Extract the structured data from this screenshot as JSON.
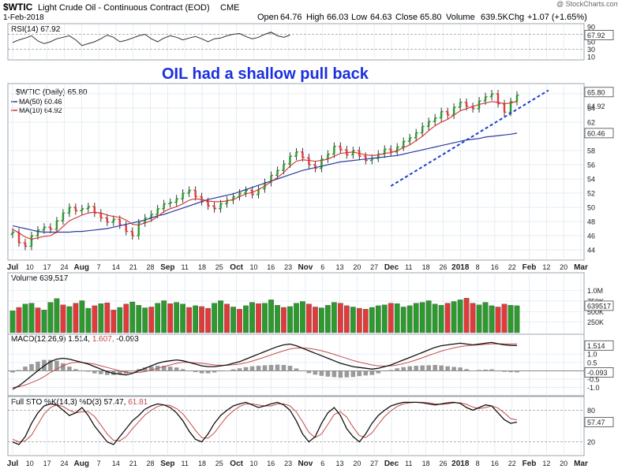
{
  "header": {
    "symbol": "$WTIC",
    "name": "Light Crude Oil - Continuous Contract (EOD)",
    "exchange": "CME",
    "date": "1-Feb-2018",
    "watermark": "@ StockCharts.com",
    "quote": {
      "open": "64.76",
      "high": "66.03",
      "low": "64.63",
      "close": "65.80",
      "volume": "639.5K",
      "chg": "+1.07 (+1.65%)",
      "open_label": "Open",
      "high_label": "High",
      "low_label": "Low",
      "close_label": "Close",
      "volume_label": "Volume",
      "chg_label": "Chg"
    }
  },
  "annotation": "OIL had a shallow pull back",
  "colors": {
    "up": "#2c9a2c",
    "down": "#e03b3b",
    "ma50": "#2a3aa0",
    "ma10": "#d13030",
    "rsi": "#333333",
    "trend": "#1c3ccf",
    "panel_bg": "#ffffff",
    "grid": "#dbe6ef",
    "macd": "#111111",
    "signal": "#c84a4a",
    "stok": "#111111",
    "stod": "#c84a4a",
    "hist": "#9a9a9a"
  },
  "chart_data": [
    {
      "type": "line",
      "title": "RSI(14) 67.92",
      "ylim": [
        10,
        90
      ],
      "yticks": [
        "90",
        "70",
        "50",
        "30",
        "10"
      ],
      "last_label": "67.92",
      "series": [
        {
          "name": "RSI(14)",
          "values": [
            48,
            55,
            60,
            66,
            52,
            45,
            50,
            58,
            62,
            66,
            55,
            40,
            45,
            50,
            58,
            68,
            62,
            50,
            54,
            60,
            66,
            70,
            58,
            50,
            60,
            66,
            62,
            55,
            60,
            64,
            58,
            50,
            58,
            60,
            66,
            70,
            72,
            64,
            58,
            62,
            70,
            76,
            66,
            62,
            67.92
          ]
        }
      ]
    },
    {
      "type": "candlestick",
      "title": "$WTIC (Daily) 65.80",
      "ylim": [
        43,
        67
      ],
      "yticks": [
        "66",
        "64",
        "62",
        "58",
        "56",
        "54",
        "52",
        "50",
        "48",
        "46",
        "44"
      ],
      "price_labels": {
        "close": "65.80",
        "ma10": "64.92",
        "ma50": "60.46"
      },
      "legend": [
        {
          "name": "$WTIC (Daily) 65.80"
        },
        {
          "name": "MA(50) 60.46"
        },
        {
          "name": "MA(10) 64.92"
        }
      ],
      "x_months": [
        "Jul",
        "Aug",
        "Sep",
        "Oct",
        "Nov",
        "Dec",
        "2018",
        "Feb",
        "Mar"
      ],
      "x_ticks": [
        "Jul",
        "10",
        "17",
        "24",
        "Aug",
        "7",
        "14",
        "21",
        "28",
        "Sep",
        "11",
        "18",
        "25",
        "Oct",
        "10",
        "16",
        "23",
        "Nov",
        "6",
        "13",
        "20",
        "27",
        "Dec",
        "11",
        "18",
        "26",
        "2018",
        "8",
        "16",
        "22",
        "Feb",
        "12",
        "20",
        "Mar"
      ],
      "close_series": [
        46.5,
        45.0,
        44.5,
        46.0,
        46.8,
        47.2,
        46.9,
        48.1,
        49.2,
        50.0,
        49.5,
        49.8,
        50.1,
        49.2,
        48.5,
        47.9,
        48.3,
        47.5,
        46.6,
        46.0,
        47.8,
        48.5,
        49.0,
        49.8,
        50.5,
        50.7,
        51.2,
        52.0,
        52.4,
        51.5,
        50.8,
        50.2,
        49.8,
        50.5,
        51.0,
        51.5,
        52.0,
        52.4,
        51.8,
        52.6,
        53.5,
        54.5,
        55.2,
        56.1,
        57.2,
        57.8,
        57.0,
        56.0,
        55.5,
        56.8,
        57.5,
        58.6,
        58.1,
        57.4,
        58.0,
        57.2,
        56.6,
        56.9,
        57.5,
        58.2,
        57.8,
        58.5,
        59.3,
        59.8,
        60.5,
        61.4,
        62.1,
        62.6,
        63.5,
        63.0,
        64.1,
        64.8,
        64.2,
        63.9,
        65.0,
        65.6,
        66.0,
        64.6,
        63.4,
        64.9,
        65.8
      ],
      "ma10": [
        46.9,
        46.4,
        45.8,
        45.5,
        45.7,
        45.9,
        46.0,
        46.5,
        47.3,
        48.1,
        48.5,
        48.9,
        49.2,
        49.3,
        49.2,
        48.9,
        48.7,
        48.6,
        48.2,
        47.6,
        47.5,
        47.8,
        48.1,
        48.7,
        49.4,
        49.8,
        50.1,
        50.5,
        51.0,
        51.2,
        51.1,
        50.9,
        50.8,
        50.8,
        50.9,
        51.1,
        51.5,
        51.9,
        52.1,
        52.5,
        53.0,
        53.6,
        54.2,
        54.9,
        55.8,
        56.5,
        56.7,
        56.6,
        56.5,
        56.6,
        56.8,
        57.2,
        57.6,
        57.7,
        57.8,
        57.6,
        57.4,
        57.3,
        57.4,
        57.6,
        57.7,
        58.0,
        58.4,
        58.8,
        59.4,
        60.0,
        60.8,
        61.5,
        62.0,
        62.4,
        63.0,
        63.6,
        63.9,
        64.2,
        64.5,
        64.7,
        64.9,
        64.8,
        64.6,
        64.7,
        64.92
      ],
      "ma50": [
        47.4,
        47.2,
        47.0,
        46.8,
        46.6,
        46.5,
        46.5,
        46.5,
        46.5,
        46.5,
        46.6,
        46.6,
        46.7,
        46.8,
        46.9,
        47.0,
        47.2,
        47.4,
        47.6,
        47.8,
        48.0,
        48.2,
        48.5,
        48.8,
        49.0,
        49.3,
        49.6,
        49.9,
        50.2,
        50.5,
        50.8,
        51.1,
        51.3,
        51.5,
        51.7,
        51.9,
        52.2,
        52.5,
        52.8,
        53.1,
        53.4,
        53.7,
        54.0,
        54.3,
        54.6,
        54.9,
        55.2,
        55.4,
        55.6,
        55.8,
        56.0,
        56.2,
        56.4,
        56.5,
        56.6,
        56.7,
        56.8,
        56.9,
        57.0,
        57.1,
        57.2,
        57.3,
        57.5,
        57.7,
        57.9,
        58.1,
        58.3,
        58.5,
        58.7,
        58.9,
        59.1,
        59.3,
        59.5,
        59.6,
        59.7,
        59.9,
        60.0,
        60.1,
        60.2,
        60.3,
        60.46
      ],
      "trendline": {
        "from": [
          60,
          53.0
        ],
        "to": [
          85,
          66.5
        ]
      }
    },
    {
      "type": "bar",
      "title": "Volume 639,517",
      "ylim": [
        0,
        1200000
      ],
      "yticks": [
        "1.0M",
        "750K",
        "500K",
        "250K"
      ],
      "last_label": "639517",
      "values": [
        520,
        600,
        680,
        700,
        590,
        540,
        720,
        810,
        660,
        620,
        700,
        760,
        580,
        640,
        690,
        710,
        540,
        600,
        680,
        730,
        650,
        590,
        610,
        700,
        760,
        690,
        720,
        680,
        600,
        640,
        620,
        580,
        700,
        760,
        680,
        610,
        560,
        640,
        720,
        690,
        700,
        780,
        650,
        600,
        620,
        700,
        740,
        680,
        610,
        590,
        650,
        720,
        700,
        640,
        610,
        580,
        560,
        600,
        640,
        660,
        700,
        690,
        610,
        640,
        700,
        720,
        760,
        680,
        650,
        700,
        740,
        780,
        820,
        700,
        660,
        720,
        640,
        610,
        680,
        650,
        639.517
      ],
      "value_unit": "thousands",
      "up_down": [
        1,
        0,
        1,
        1,
        0,
        1,
        1,
        1,
        0,
        1,
        0,
        1,
        1,
        0,
        1,
        0,
        0,
        1,
        0,
        1,
        1,
        1,
        0,
        1,
        1,
        0,
        1,
        1,
        0,
        1,
        0,
        0,
        1,
        1,
        0,
        1,
        0,
        1,
        1,
        0,
        1,
        1,
        1,
        0,
        1,
        1,
        1,
        0,
        0,
        1,
        1,
        1,
        0,
        0,
        1,
        0,
        0,
        1,
        1,
        1,
        0,
        1,
        1,
        1,
        1,
        1,
        1,
        1,
        1,
        0,
        1,
        1,
        0,
        0,
        1,
        1,
        1,
        0,
        0,
        1,
        1
      ]
    },
    {
      "type": "line",
      "title": "MACD(12,26,9) 1.514, 1.607, -0.093",
      "legend_parts": [
        "MACD(12,26,9)",
        "1.514,",
        "1.607,",
        "-0.093"
      ],
      "ylim": [
        -1.3,
        2.0
      ],
      "yticks": [
        "1.514",
        "1.0",
        "0.5",
        "-0.093",
        "-0.5",
        "-1.0"
      ],
      "series": [
        {
          "name": "MACD",
          "values": [
            -1.1,
            -0.9,
            -0.6,
            -0.3,
            0.0,
            0.3,
            0.55,
            0.7,
            0.75,
            0.7,
            0.6,
            0.5,
            0.4,
            0.25,
            0.1,
            -0.05,
            -0.15,
            -0.2,
            -0.25,
            -0.15,
            0.0,
            0.15,
            0.3,
            0.45,
            0.55,
            0.6,
            0.65,
            0.6,
            0.5,
            0.4,
            0.3,
            0.25,
            0.25,
            0.3,
            0.35,
            0.45,
            0.55,
            0.7,
            0.85,
            1.0,
            1.15,
            1.3,
            1.45,
            1.55,
            1.6,
            1.5,
            1.35,
            1.2,
            1.05,
            0.9,
            0.75,
            0.6,
            0.45,
            0.35,
            0.25,
            0.2,
            0.15,
            0.1,
            0.15,
            0.25,
            0.35,
            0.5,
            0.65,
            0.8,
            0.95,
            1.1,
            1.25,
            1.4,
            1.5,
            1.55,
            1.6,
            1.65,
            1.6,
            1.55,
            1.6,
            1.65,
            1.7,
            1.62,
            1.55,
            1.52,
            1.514
          ]
        },
        {
          "name": "Signal",
          "values": [
            -1.0,
            -0.95,
            -0.85,
            -0.7,
            -0.55,
            -0.35,
            -0.1,
            0.1,
            0.3,
            0.45,
            0.5,
            0.5,
            0.45,
            0.4,
            0.3,
            0.2,
            0.1,
            0.0,
            -0.08,
            -0.12,
            -0.1,
            -0.05,
            0.05,
            0.15,
            0.25,
            0.35,
            0.45,
            0.5,
            0.5,
            0.48,
            0.45,
            0.4,
            0.35,
            0.33,
            0.33,
            0.36,
            0.4,
            0.48,
            0.58,
            0.7,
            0.82,
            0.95,
            1.08,
            1.2,
            1.3,
            1.36,
            1.37,
            1.34,
            1.28,
            1.2,
            1.1,
            0.98,
            0.86,
            0.74,
            0.62,
            0.52,
            0.43,
            0.35,
            0.3,
            0.28,
            0.3,
            0.35,
            0.43,
            0.53,
            0.65,
            0.78,
            0.92,
            1.05,
            1.18,
            1.28,
            1.37,
            1.45,
            1.5,
            1.53,
            1.55,
            1.58,
            1.61,
            1.62,
            1.61,
            1.6,
            1.607
          ]
        },
        {
          "name": "Histogram",
          "values": [
            -0.1,
            0.05,
            0.25,
            0.4,
            0.55,
            0.65,
            0.65,
            0.6,
            0.45,
            0.25,
            0.1,
            0.0,
            -0.05,
            -0.15,
            -0.2,
            -0.25,
            -0.25,
            -0.2,
            -0.17,
            -0.03,
            0.1,
            0.2,
            0.25,
            0.3,
            0.3,
            0.25,
            0.2,
            0.1,
            0.0,
            -0.08,
            -0.15,
            -0.15,
            -0.1,
            -0.03,
            0.02,
            0.09,
            0.15,
            0.22,
            0.27,
            0.3,
            0.33,
            0.35,
            0.37,
            0.35,
            0.3,
            0.14,
            -0.02,
            -0.14,
            -0.23,
            -0.3,
            -0.35,
            -0.38,
            -0.41,
            -0.39,
            -0.37,
            -0.32,
            -0.28,
            -0.25,
            -0.15,
            -0.03,
            0.05,
            0.15,
            0.22,
            0.27,
            0.3,
            0.32,
            0.33,
            0.35,
            0.32,
            0.27,
            0.23,
            0.2,
            0.1,
            0.02,
            0.05,
            0.07,
            0.09,
            0.0,
            -0.06,
            -0.08,
            -0.093
          ]
        }
      ]
    },
    {
      "type": "line",
      "title": "Full STO %K(14,3) %D(3) 57.47, 61.81",
      "legend_parts": [
        "Full STO %K(14,3) %D(3)",
        "57.47,",
        "61.81"
      ],
      "ylim": [
        0,
        100
      ],
      "yticks": [
        "80",
        "57.47",
        "20"
      ],
      "series": [
        {
          "name": "%K",
          "values": [
            20,
            15,
            30,
            55,
            75,
            88,
            92,
            90,
            80,
            70,
            75,
            85,
            70,
            50,
            35,
            20,
            15,
            30,
            45,
            60,
            70,
            82,
            88,
            92,
            90,
            85,
            75,
            60,
            40,
            25,
            20,
            35,
            55,
            70,
            80,
            88,
            92,
            95,
            90,
            85,
            88,
            92,
            95,
            90,
            80,
            60,
            35,
            20,
            30,
            55,
            75,
            85,
            70,
            45,
            30,
            20,
            35,
            55,
            70,
            80,
            88,
            92,
            95,
            95,
            95,
            94,
            92,
            90,
            92,
            94,
            95,
            93,
            85,
            80,
            85,
            90,
            88,
            75,
            62,
            55,
            57.47
          ]
        },
        {
          "name": "%D",
          "values": [
            25,
            20,
            22,
            33,
            53,
            73,
            85,
            90,
            87,
            80,
            75,
            77,
            77,
            68,
            52,
            35,
            23,
            22,
            30,
            45,
            58,
            71,
            80,
            87,
            90,
            89,
            83,
            73,
            58,
            42,
            28,
            27,
            37,
            53,
            68,
            79,
            87,
            92,
            92,
            90,
            88,
            88,
            92,
            92,
            88,
            77,
            58,
            38,
            28,
            35,
            53,
            72,
            77,
            67,
            48,
            32,
            28,
            37,
            53,
            68,
            79,
            87,
            92,
            94,
            95,
            95,
            94,
            92,
            91,
            92,
            94,
            94,
            91,
            86,
            83,
            85,
            88,
            84,
            75,
            64,
            61.81
          ]
        }
      ]
    }
  ]
}
